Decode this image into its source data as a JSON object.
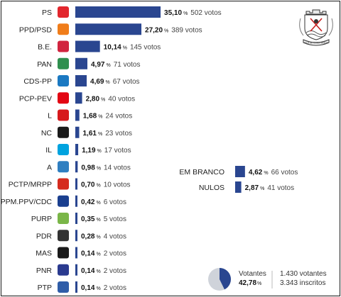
{
  "chart_data": {
    "type": "bar",
    "orientation": "horizontal",
    "categories": [
      "PS",
      "PPD/PSD",
      "B.E.",
      "PAN",
      "CDS-PP",
      "PCP-PEV",
      "L",
      "NC",
      "IL",
      "A",
      "PCTP/MRPP",
      "PPM.PPV/CDC",
      "PURP",
      "PDR",
      "MAS",
      "PNR",
      "PTP"
    ],
    "series": [
      {
        "values": [
          35.1,
          27.2,
          10.14,
          4.97,
          4.69,
          2.8,
          1.68,
          1.61,
          1.19,
          0.98,
          0.7,
          0.42,
          0.35,
          0.28,
          0.14,
          0.14,
          0.14
        ],
        "pct_labels": [
          "35,10",
          "27,20",
          "10,14",
          "4,97",
          "4,69",
          "2,80",
          "1,68",
          "1,61",
          "1,19",
          "0,98",
          "0,70",
          "0,42",
          "0,35",
          "0,28",
          "0,14",
          "0,14",
          "0,14"
        ],
        "vote_labels": [
          "502 votos",
          "389 votos",
          "145 votos",
          "71 votos",
          "67 votos",
          "40 votos",
          "24 votos",
          "23 votos",
          "17 votos",
          "14 votos",
          "10 votos",
          "6 votos",
          "5 votos",
          "4 votos",
          "2 votos",
          "2 votos",
          "2 votos"
        ]
      }
    ],
    "extra": {
      "categories": [
        "EM BRANCO",
        "NULOS"
      ],
      "values": [
        4.62,
        2.87
      ],
      "pct_labels": [
        "4,62",
        "2,87"
      ],
      "vote_labels": [
        "66 votos",
        "41 votos"
      ]
    },
    "turnout": {
      "label": "Votantes",
      "pct_label": "42,78",
      "value": 42.78,
      "votantes": "1.430 votantes",
      "inscritos": "3.343 inscritos"
    },
    "pct_sign": "%",
    "bar_color": "#2a4690",
    "turnout_bg": "#cfd3da",
    "logo_colors": [
      "#e2262d",
      "#f07d1a",
      "#d1243f",
      "#2f8f4e",
      "#1b79c2",
      "#e30613",
      "#d7191c",
      "#1a1a1a",
      "#00a3df",
      "#2f7fc1",
      "#d52b1e",
      "#1a3f8f",
      "#7ab648",
      "#333333",
      "#1a1a1a",
      "#2a3a8f",
      "#2f5da8"
    ]
  },
  "crest": {
    "motto": "VILA DE CONSTÂNCIA"
  }
}
